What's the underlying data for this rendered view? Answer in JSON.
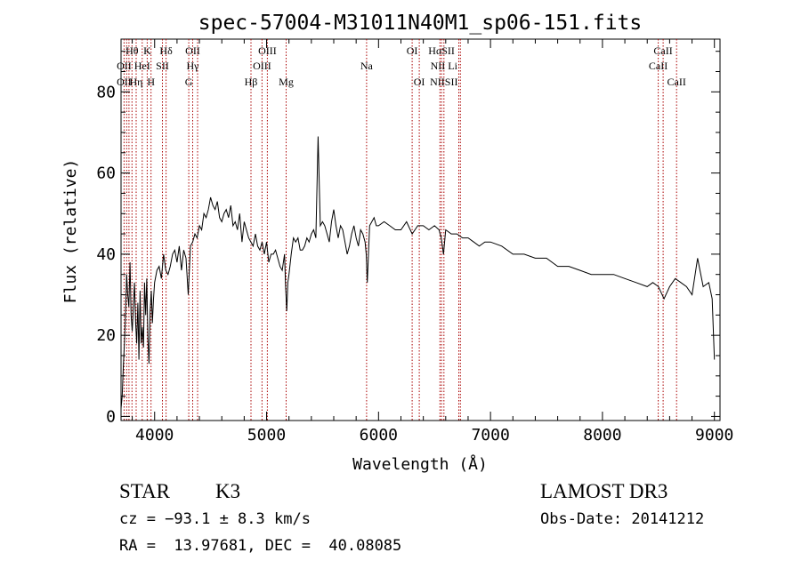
{
  "chart_data": {
    "type": "line",
    "title": "spec-57004-M31011N40M1_sp06-151.fits",
    "xlabel": "Wavelength (Å)",
    "ylabel": "Flux (relative)",
    "xlim": [
      3700,
      9050
    ],
    "ylim": [
      -1,
      93
    ],
    "xticks": [
      4000,
      5000,
      6000,
      7000,
      8000,
      9000
    ],
    "yticks": [
      0,
      20,
      40,
      60,
      80
    ],
    "grid": false,
    "series": [
      {
        "name": "flux",
        "x": [
          3700,
          3710,
          3720,
          3730,
          3740,
          3750,
          3760,
          3770,
          3780,
          3790,
          3800,
          3810,
          3820,
          3830,
          3840,
          3850,
          3860,
          3870,
          3880,
          3890,
          3900,
          3910,
          3920,
          3930,
          3940,
          3950,
          3960,
          3970,
          3980,
          3990,
          4000,
          4020,
          4040,
          4060,
          4080,
          4100,
          4120,
          4140,
          4160,
          4180,
          4200,
          4220,
          4240,
          4260,
          4280,
          4300,
          4320,
          4340,
          4360,
          4380,
          4400,
          4420,
          4440,
          4460,
          4480,
          4500,
          4520,
          4540,
          4560,
          4580,
          4600,
          4620,
          4640,
          4660,
          4680,
          4700,
          4720,
          4740,
          4760,
          4780,
          4800,
          4820,
          4840,
          4860,
          4880,
          4900,
          4920,
          4940,
          4960,
          4980,
          5000,
          5020,
          5040,
          5060,
          5080,
          5100,
          5120,
          5140,
          5160,
          5170,
          5180,
          5190,
          5200,
          5220,
          5240,
          5260,
          5280,
          5300,
          5320,
          5340,
          5360,
          5380,
          5400,
          5420,
          5440,
          5460,
          5480,
          5500,
          5520,
          5540,
          5560,
          5580,
          5600,
          5620,
          5640,
          5660,
          5680,
          5700,
          5720,
          5740,
          5760,
          5780,
          5800,
          5820,
          5840,
          5860,
          5880,
          5890,
          5900,
          5920,
          5940,
          5960,
          5980,
          6000,
          6050,
          6100,
          6150,
          6200,
          6250,
          6300,
          6350,
          6400,
          6450,
          6500,
          6540,
          6560,
          6580,
          6600,
          6650,
          6700,
          6750,
          6800,
          6850,
          6900,
          6950,
          7000,
          7100,
          7200,
          7300,
          7400,
          7500,
          7600,
          7700,
          7800,
          7900,
          8000,
          8100,
          8200,
          8300,
          8400,
          8450,
          8500,
          8550,
          8600,
          8650,
          8700,
          8750,
          8800,
          8850,
          8900,
          8950,
          8980,
          9000
        ],
        "y": [
          2,
          5,
          12,
          18,
          25,
          35,
          30,
          27,
          38,
          25,
          21,
          27,
          33,
          23,
          18,
          28,
          14,
          31,
          18,
          22,
          17,
          33,
          25,
          34,
          19,
          13,
          26,
          31,
          23,
          29,
          33,
          36,
          37,
          34,
          40,
          36,
          35,
          37,
          40,
          41,
          38,
          42,
          36,
          41,
          39,
          30,
          42,
          43,
          45,
          44,
          47,
          46,
          50,
          49,
          51,
          54,
          52,
          51,
          53,
          49,
          48,
          50,
          51,
          49,
          52,
          47,
          48,
          46,
          50,
          43,
          48,
          46,
          44,
          43,
          42,
          45,
          42,
          41,
          43,
          40,
          43,
          38,
          40,
          40,
          41,
          39,
          37,
          36,
          40,
          32,
          26,
          33,
          35,
          40,
          44,
          43,
          44,
          41,
          41,
          42,
          44,
          43,
          45,
          46,
          44,
          69,
          47,
          48,
          47,
          45,
          43,
          48,
          51,
          47,
          44,
          47,
          46,
          43,
          40,
          42,
          45,
          47,
          44,
          42,
          46,
          45,
          43,
          40,
          33,
          47,
          48,
          49,
          47,
          47,
          48,
          47,
          46,
          46,
          48,
          45,
          47,
          47,
          46,
          47,
          46,
          44,
          40,
          46,
          45,
          45,
          44,
          44,
          43,
          42,
          43,
          43,
          42,
          40,
          40,
          39,
          39,
          37,
          37,
          36,
          35,
          35,
          35,
          34,
          33,
          32,
          33,
          32,
          29,
          32,
          34,
          33,
          32,
          30,
          39,
          32,
          33,
          29,
          14
        ]
      }
    ],
    "line_markers": [
      {
        "label": "Hθ",
        "x": 3798,
        "row": 1
      },
      {
        "label": "K",
        "x": 3934,
        "row": 1
      },
      {
        "label": "Hδ",
        "x": 4102,
        "row": 1
      },
      {
        "label": "OII",
        "x": 4340,
        "row": 1
      },
      {
        "label": "OIII",
        "x": 5007,
        "row": 1
      },
      {
        "label": "OI",
        "x": 6300,
        "row": 1
      },
      {
        "label": "HαSII",
        "x": 6563,
        "row": 1
      },
      {
        "label": "CaII",
        "x": 8542,
        "row": 1
      },
      {
        "label": "OII",
        "x": 3727,
        "row": 2
      },
      {
        "label": "HeI",
        "x": 3889,
        "row": 2
      },
      {
        "label": "SII",
        "x": 4070,
        "row": 2
      },
      {
        "label": "Hγ",
        "x": 4340,
        "row": 2
      },
      {
        "label": "OIII",
        "x": 4959,
        "row": 2
      },
      {
        "label": "Na",
        "x": 5893,
        "row": 2
      },
      {
        "label": "NII Li",
        "x": 6584,
        "row": 2
      },
      {
        "label": "CaII",
        "x": 8498,
        "row": 2
      },
      {
        "label": "OII",
        "x": 3727,
        "row": 3
      },
      {
        "label": "Hη",
        "x": 3835,
        "row": 3
      },
      {
        "label": "H",
        "x": 3968,
        "row": 3
      },
      {
        "label": "G",
        "x": 4305,
        "row": 3
      },
      {
        "label": "Hβ",
        "x": 4861,
        "row": 3
      },
      {
        "label": "Mg",
        "x": 5175,
        "row": 3
      },
      {
        "label": "OI",
        "x": 6364,
        "row": 3
      },
      {
        "label": "NIISII",
        "x": 6584,
        "row": 3
      },
      {
        "label": "CaII",
        "x": 8662,
        "row": 3
      }
    ],
    "line_positions": [
      3727,
      3750,
      3771,
      3798,
      3835,
      3889,
      3934,
      3968,
      4070,
      4102,
      4305,
      4340,
      4384,
      4861,
      4959,
      5007,
      5175,
      5893,
      6300,
      6364,
      6548,
      6563,
      6584,
      6717,
      6731,
      8498,
      8542,
      8662
    ]
  },
  "info": {
    "class_label": "STAR",
    "subclass_label": "K3",
    "cz": "cz = −93.1 ± 8.3 km/s",
    "coords": "RA =  13.97681, DEC =  40.08085",
    "survey": "LAMOST DR3",
    "obs_date": "Obs-Date: 20141212"
  },
  "colors": {
    "line_marker": "#aa0000",
    "spectrum": "#000000",
    "axes": "#000000"
  }
}
